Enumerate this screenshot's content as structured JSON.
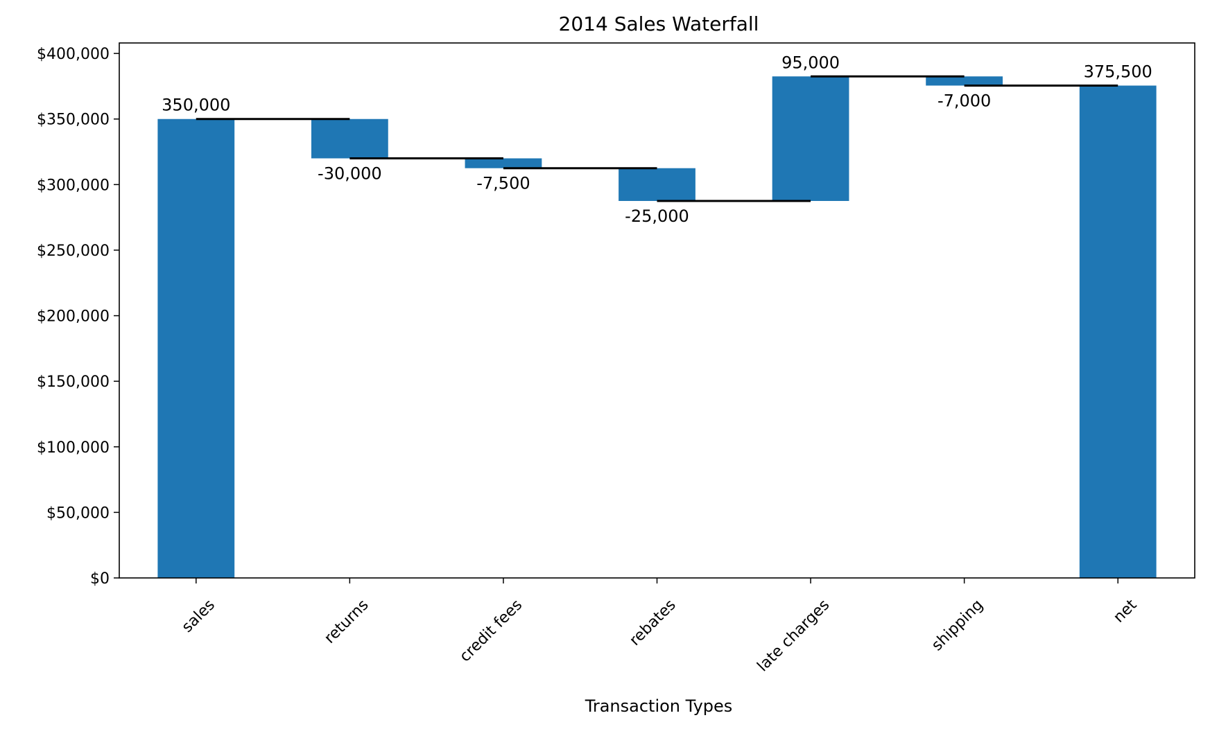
{
  "chart_data": {
    "type": "bar",
    "subtype": "waterfall",
    "title": "2014 Sales Waterfall",
    "xlabel": "Transaction Types",
    "ylabel": "",
    "categories": [
      "sales",
      "returns",
      "credit fees",
      "rebates",
      "late charges",
      "shipping",
      "net"
    ],
    "values": [
      350000,
      -30000,
      -7500,
      -25000,
      95000,
      -7000,
      375500
    ],
    "data_labels": [
      "350,000",
      "-30,000",
      "-7,500",
      "-25,000",
      "95,000",
      "-7,000",
      "375,500"
    ],
    "total_index": 6,
    "ylim": [
      0,
      408000
    ],
    "yticks": [
      0,
      50000,
      100000,
      150000,
      200000,
      250000,
      300000,
      350000,
      400000
    ],
    "ytick_labels": [
      "$0",
      "$50,000",
      "$100,000",
      "$150,000",
      "$200,000",
      "$250,000",
      "$300,000",
      "$350,000",
      "$400,000"
    ],
    "bar_color": "#1f77b4",
    "connector_color": "#000000",
    "grid": false,
    "legend": "none"
  }
}
